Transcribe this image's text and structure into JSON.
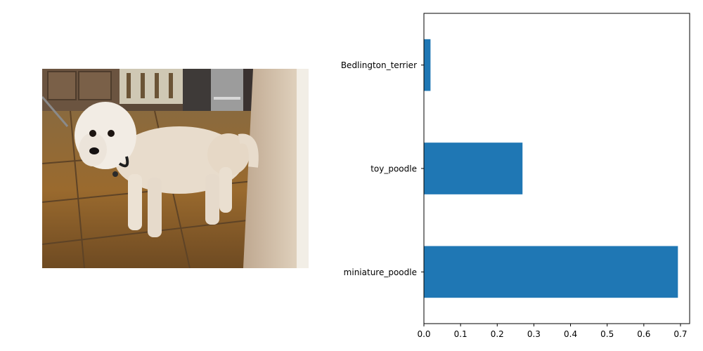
{
  "photo": {
    "subject": "dog-photo"
  },
  "colors": {
    "bar": "#1f77b4",
    "axis": "#000000",
    "background": "#ffffff"
  },
  "chart_data": {
    "type": "bar",
    "orientation": "horizontal",
    "categories": [
      "miniature_poodle",
      "toy_poodle",
      "Bedlington_terrier"
    ],
    "values": [
      0.693,
      0.269,
      0.018
    ],
    "xlim": [
      0,
      0.725
    ],
    "xticks": [
      "0.0",
      "0.1",
      "0.2",
      "0.3",
      "0.4",
      "0.5",
      "0.6",
      "0.7"
    ],
    "grid": false,
    "legend": "none"
  }
}
